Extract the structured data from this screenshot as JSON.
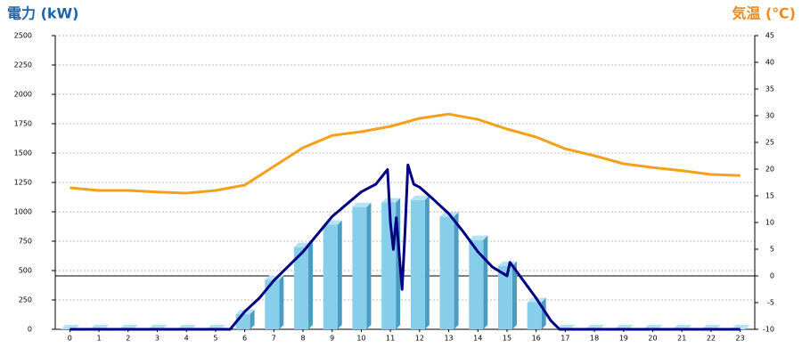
{
  "chart_data": {
    "type": "bar",
    "ylabel": "電力 (kW)",
    "y2label": "気温 (℃)",
    "categories": [
      "0",
      "1",
      "2",
      "3",
      "4",
      "5",
      "6",
      "7",
      "8",
      "9",
      "10",
      "11",
      "12",
      "13",
      "14",
      "15",
      "16",
      "17",
      "18",
      "19",
      "20",
      "21",
      "22",
      "23"
    ],
    "ylim": [
      0,
      2500
    ],
    "yticks": [
      0,
      250,
      500,
      750,
      1000,
      1250,
      1500,
      1750,
      2000,
      2250,
      2500
    ],
    "y2lim": [
      -10,
      45
    ],
    "y2ticks": [
      -10,
      -5,
      0,
      5,
      10,
      15,
      20,
      25,
      30,
      35,
      40,
      45
    ],
    "grid": true,
    "series": [
      {
        "type": "bar",
        "color": "#87ceeb",
        "values": [
          0,
          0,
          0,
          0,
          0,
          0,
          130,
          420,
          700,
          890,
          1040,
          1080,
          1100,
          960,
          760,
          540,
          230,
          0,
          0,
          0,
          0,
          0,
          0,
          0
        ]
      },
      {
        "type": "line",
        "color": "#000080",
        "x": [
          0,
          5.5,
          6,
          6.5,
          7,
          8,
          9,
          10,
          10.5,
          10.9,
          11,
          11.1,
          11.2,
          11.4,
          11.5,
          11.6,
          11.8,
          12,
          12.5,
          13,
          13.5,
          14,
          14.5,
          15,
          15.1,
          16,
          16.5,
          16.8,
          23
        ],
        "values": [
          0,
          0,
          150,
          265,
          415,
          660,
          960,
          1170,
          1235,
          1360,
          910,
          680,
          950,
          340,
          830,
          1400,
          1235,
          1210,
          1100,
          985,
          830,
          660,
          530,
          455,
          570,
          265,
          75,
          0,
          0
        ]
      },
      {
        "type": "line",
        "axis": "y2",
        "color": "#f5a01a",
        "x": [
          0,
          1,
          2,
          3,
          4,
          5,
          6,
          7,
          8,
          9,
          10,
          11,
          12,
          13,
          14,
          15,
          16,
          17,
          18,
          19,
          20,
          21,
          22,
          23
        ],
        "values": [
          16.5,
          16,
          16,
          15.7,
          15.5,
          16,
          17,
          20.5,
          24,
          26.3,
          27,
          28,
          29.5,
          30.3,
          29.3,
          27.5,
          26,
          23.8,
          22.5,
          21,
          20.3,
          19.7,
          19,
          18.8
        ]
      }
    ]
  }
}
